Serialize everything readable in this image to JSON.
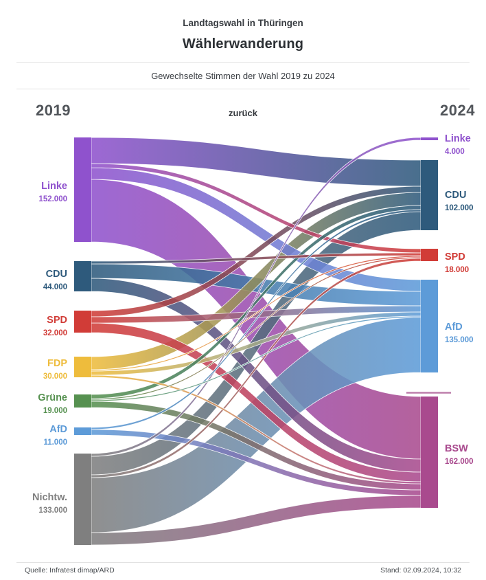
{
  "header": {
    "kicker": "Landtagswahl in Thüringen",
    "title": "Wählerwanderung",
    "subtitle": "Gewechselte Stimmen der Wahl 2019 zu 2024"
  },
  "columns": {
    "left_year": "2019",
    "right_year": "2024",
    "back_label": "zurück"
  },
  "footer": {
    "source": "Quelle: Infratest dimap/ARD",
    "stand": "Stand: 02.09.2024, 10:32"
  },
  "chart_data": {
    "type": "sankey",
    "title": "Wählerwanderung",
    "subtitle": "Gewechselte Stimmen der Wahl 2019 zu 2024",
    "left_column_label": "2019",
    "right_column_label": "2024",
    "unit": "Stimmen",
    "nodes_2019": [
      {
        "id": "linke",
        "label": "Linke",
        "value": 152000,
        "value_text": "152.000",
        "color": "#8f52cd"
      },
      {
        "id": "cdu",
        "label": "CDU",
        "value": 44000,
        "value_text": "44.000",
        "color": "#2e5a7c"
      },
      {
        "id": "spd",
        "label": "SPD",
        "value": 32000,
        "value_text": "32.000",
        "color": "#d13c37"
      },
      {
        "id": "fdp",
        "label": "FDP",
        "value": 30000,
        "value_text": "30.000",
        "color": "#eebc3c"
      },
      {
        "id": "gruene",
        "label": "Grüne",
        "value": 19000,
        "value_text": "19.000",
        "color": "#569150"
      },
      {
        "id": "afd",
        "label": "AfD",
        "value": 11000,
        "value_text": "11.000",
        "color": "#5d9bd8"
      },
      {
        "id": "nichtw",
        "label": "Nichtw.",
        "value": 133000,
        "value_text": "133.000",
        "color": "#7f7f7f"
      }
    ],
    "nodes_2024": [
      {
        "id": "linke",
        "label": "Linke",
        "value": 4000,
        "value_text": "4.000",
        "color": "#8f52cd"
      },
      {
        "id": "cdu",
        "label": "CDU",
        "value": 102000,
        "value_text": "102.000",
        "color": "#2e5a7c"
      },
      {
        "id": "spd",
        "label": "SPD",
        "value": 18000,
        "value_text": "18.000",
        "color": "#d13c37"
      },
      {
        "id": "afd",
        "label": "AfD",
        "value": 135000,
        "value_text": "135.000",
        "color": "#5d9bd8"
      },
      {
        "id": "bsw",
        "label": "BSW",
        "value": 162000,
        "value_text": "162.000",
        "color": "#a94a8e"
      }
    ],
    "link_values_estimated": true,
    "links": [
      {
        "source": "linke",
        "target": "cdu",
        "value": 38000
      },
      {
        "source": "linke",
        "target": "spd",
        "value": 6000
      },
      {
        "source": "linke",
        "target": "afd",
        "value": 17000
      },
      {
        "source": "linke",
        "target": "bsw",
        "value": 91000
      },
      {
        "source": "cdu",
        "target": "spd",
        "value": 4000
      },
      {
        "source": "cdu",
        "target": "afd",
        "value": 21000
      },
      {
        "source": "cdu",
        "target": "bsw",
        "value": 19000
      },
      {
        "source": "spd",
        "target": "cdu",
        "value": 9000
      },
      {
        "source": "spd",
        "target": "afd",
        "value": 9000
      },
      {
        "source": "spd",
        "target": "bsw",
        "value": 14000
      },
      {
        "source": "fdp",
        "target": "cdu",
        "value": 19000
      },
      {
        "source": "fdp",
        "target": "spd",
        "value": 2000
      },
      {
        "source": "fdp",
        "target": "afd",
        "value": 6000
      },
      {
        "source": "fdp",
        "target": "bsw",
        "value": 3000
      },
      {
        "source": "gruene",
        "target": "cdu",
        "value": 6000
      },
      {
        "source": "gruene",
        "target": "spd",
        "value": 2000
      },
      {
        "source": "gruene",
        "target": "afd",
        "value": 2000
      },
      {
        "source": "gruene",
        "target": "bsw",
        "value": 9000
      },
      {
        "source": "afd",
        "target": "cdu",
        "value": 3000
      },
      {
        "source": "afd",
        "target": "bsw",
        "value": 8000
      },
      {
        "source": "nichtw",
        "target": "linke",
        "value": 4000
      },
      {
        "source": "nichtw",
        "target": "cdu",
        "value": 27000
      },
      {
        "source": "nichtw",
        "target": "spd",
        "value": 4000
      },
      {
        "source": "nichtw",
        "target": "afd",
        "value": 80000
      },
      {
        "source": "nichtw",
        "target": "bsw",
        "value": 18000
      }
    ]
  }
}
